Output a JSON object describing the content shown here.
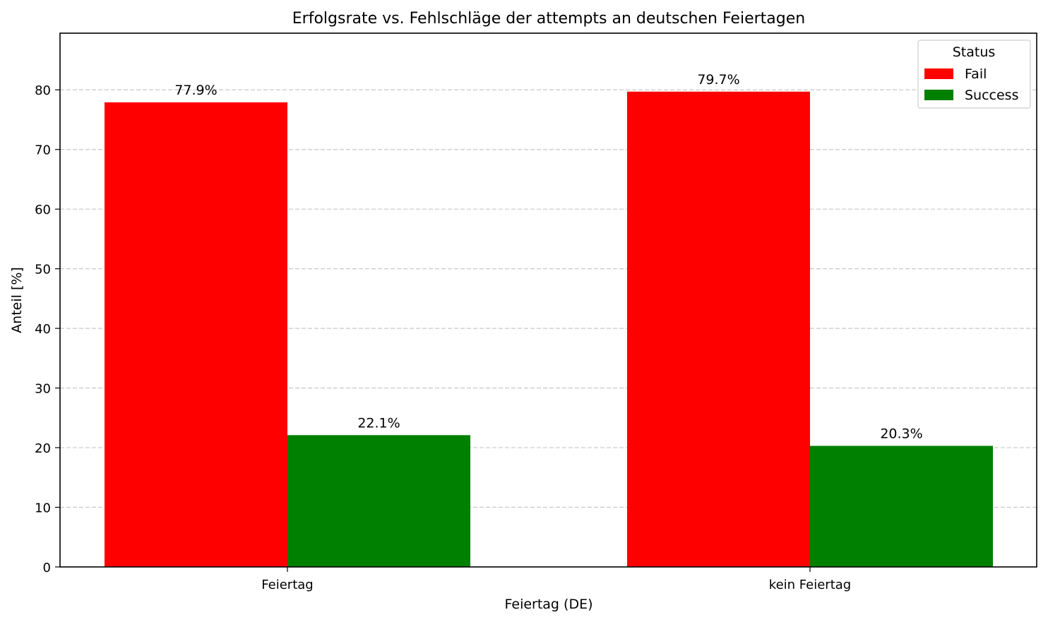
{
  "chart_data": {
    "type": "bar",
    "title": "Erfolgsrate vs. Fehlschläge der attempts an deutschen Feiertagen",
    "xlabel": "Feiertag (DE)",
    "ylabel": "Anteil [%]",
    "categories": [
      "Feiertag",
      "kein Feiertag"
    ],
    "series": [
      {
        "name": "Fail",
        "color": "#ff0000",
        "values": [
          77.9,
          79.7
        ],
        "labels": [
          "77.9%",
          "79.7%"
        ]
      },
      {
        "name": "Success",
        "color": "#008000",
        "values": [
          22.1,
          20.3
        ],
        "labels": [
          "22.1%",
          "20.3%"
        ]
      }
    ],
    "ylim": [
      0,
      89.5
    ],
    "yticks": [
      0,
      10,
      20,
      30,
      40,
      50,
      60,
      70,
      80
    ],
    "grid": "y-dashed",
    "legend": {
      "title": "Status",
      "placement": "top-right"
    }
  }
}
